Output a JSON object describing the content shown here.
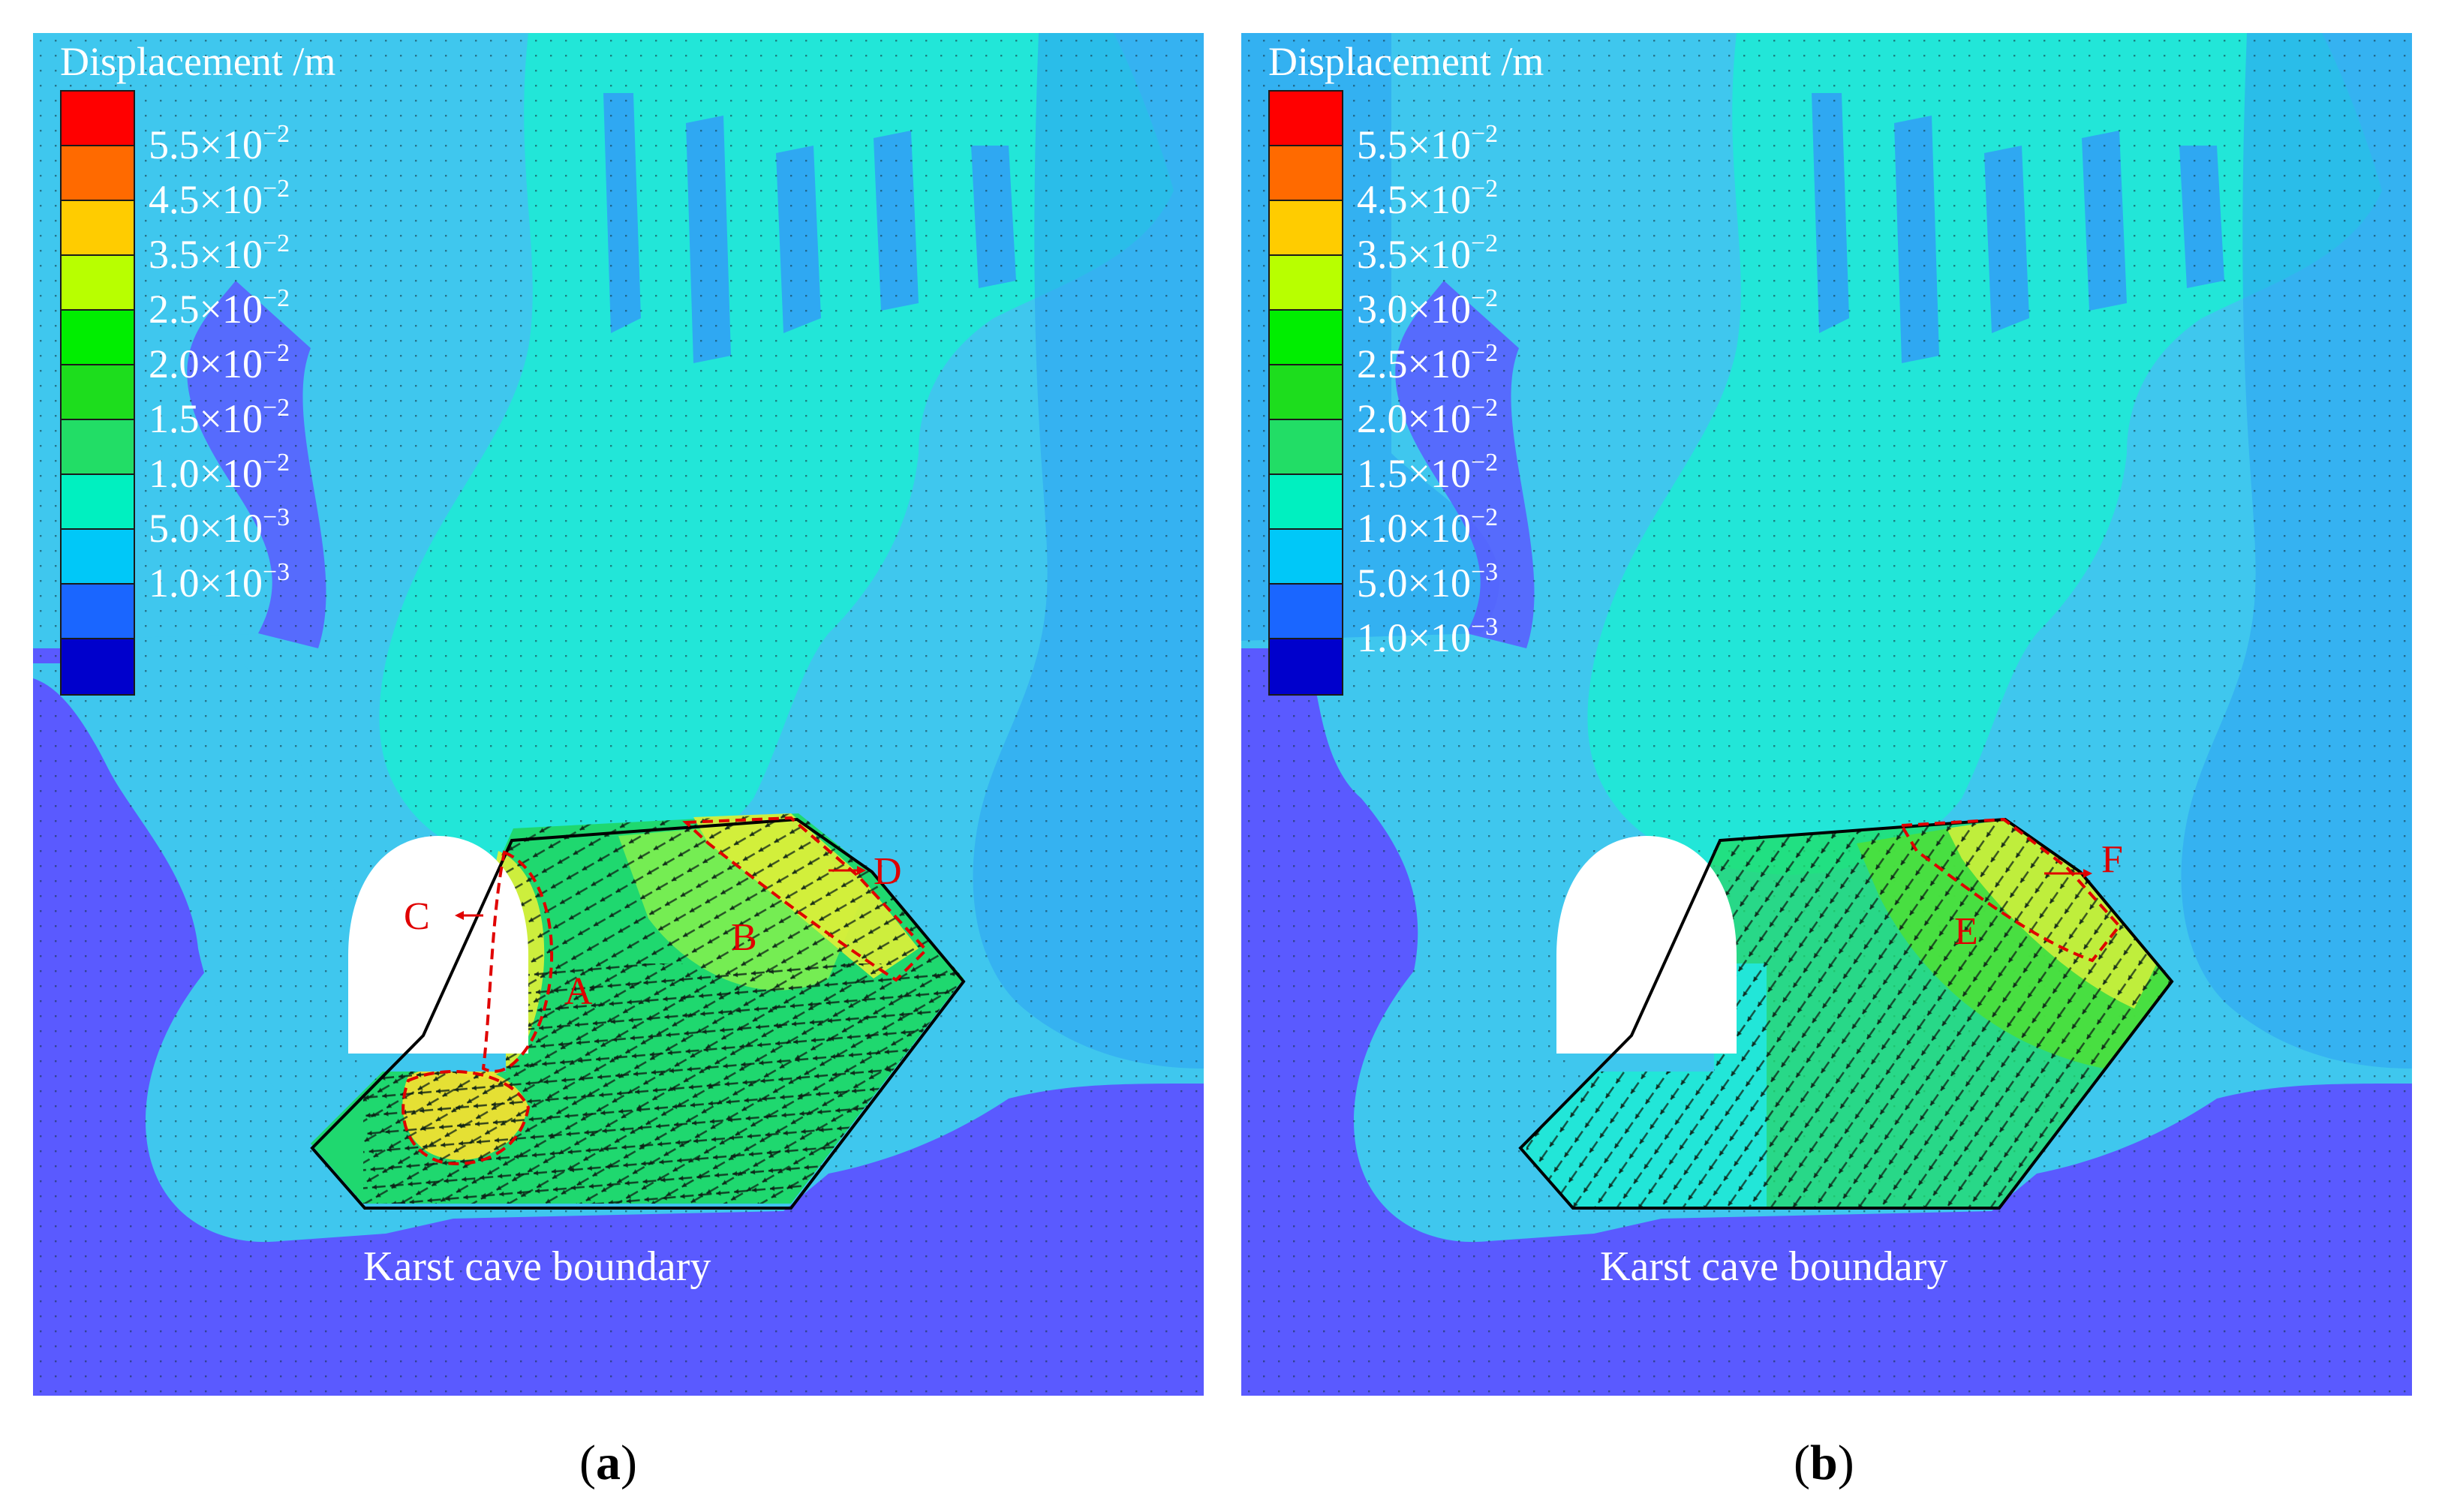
{
  "panels": [
    {
      "id": "a",
      "caption_letter": "a",
      "legend_title": "Displacement /m",
      "legend_colors": [
        "#ff0000",
        "#ff6a00",
        "#ffcc00",
        "#b8ff00",
        "#00ee00",
        "#1ddd1d",
        "#22dd66",
        "#00f0c0",
        "#00c8f8",
        "#1a66ff",
        "#0000cc"
      ],
      "legend_labels": [
        {
          "mantissa": "5.5×10",
          "exp": "−2"
        },
        {
          "mantissa": "4.5×10",
          "exp": "−2"
        },
        {
          "mantissa": "3.5×10",
          "exp": "−2"
        },
        {
          "mantissa": "2.5×10",
          "exp": "−2"
        },
        {
          "mantissa": "2.0×10",
          "exp": "−2"
        },
        {
          "mantissa": "1.5×10",
          "exp": "−2"
        },
        {
          "mantissa": "1.0×10",
          "exp": "−2"
        },
        {
          "mantissa": "5.0×10",
          "exp": "−3"
        },
        {
          "mantissa": "1.0×10",
          "exp": "−3"
        }
      ],
      "boundary_label": "Karst cave boundary",
      "zone_labels": [
        "A",
        "B",
        "C",
        "D"
      ]
    },
    {
      "id": "b",
      "caption_letter": "b",
      "legend_title": "Displacement /m",
      "legend_colors": [
        "#ff0000",
        "#ff6a00",
        "#ffcc00",
        "#b8ff00",
        "#00ee00",
        "#1ddd1d",
        "#22dd66",
        "#00f0c0",
        "#00c8f8",
        "#1a66ff",
        "#0000cc"
      ],
      "legend_labels": [
        {
          "mantissa": "5.5×10",
          "exp": "−2"
        },
        {
          "mantissa": "4.5×10",
          "exp": "−2"
        },
        {
          "mantissa": "3.5×10",
          "exp": "−2"
        },
        {
          "mantissa": "3.0×10",
          "exp": "−2"
        },
        {
          "mantissa": "2.5×10",
          "exp": "−2"
        },
        {
          "mantissa": "2.0×10",
          "exp": "−2"
        },
        {
          "mantissa": "1.5×10",
          "exp": "−2"
        },
        {
          "mantissa": "1.0×10",
          "exp": "−2"
        },
        {
          "mantissa": "5.0×10",
          "exp": "−3"
        },
        {
          "mantissa": "1.0×10",
          "exp": "−3"
        }
      ],
      "boundary_label": "Karst cave boundary",
      "zone_labels": [
        "E",
        "F"
      ]
    }
  ],
  "colors": {
    "background_low": "#5a5aff",
    "background_mid": "#3fc7ee",
    "background_band": "#2fa8f2",
    "field_upper": "#22e6d8",
    "tunnel": "#ffffff",
    "boundary": "#000000",
    "zone_outline": "#e00000"
  }
}
